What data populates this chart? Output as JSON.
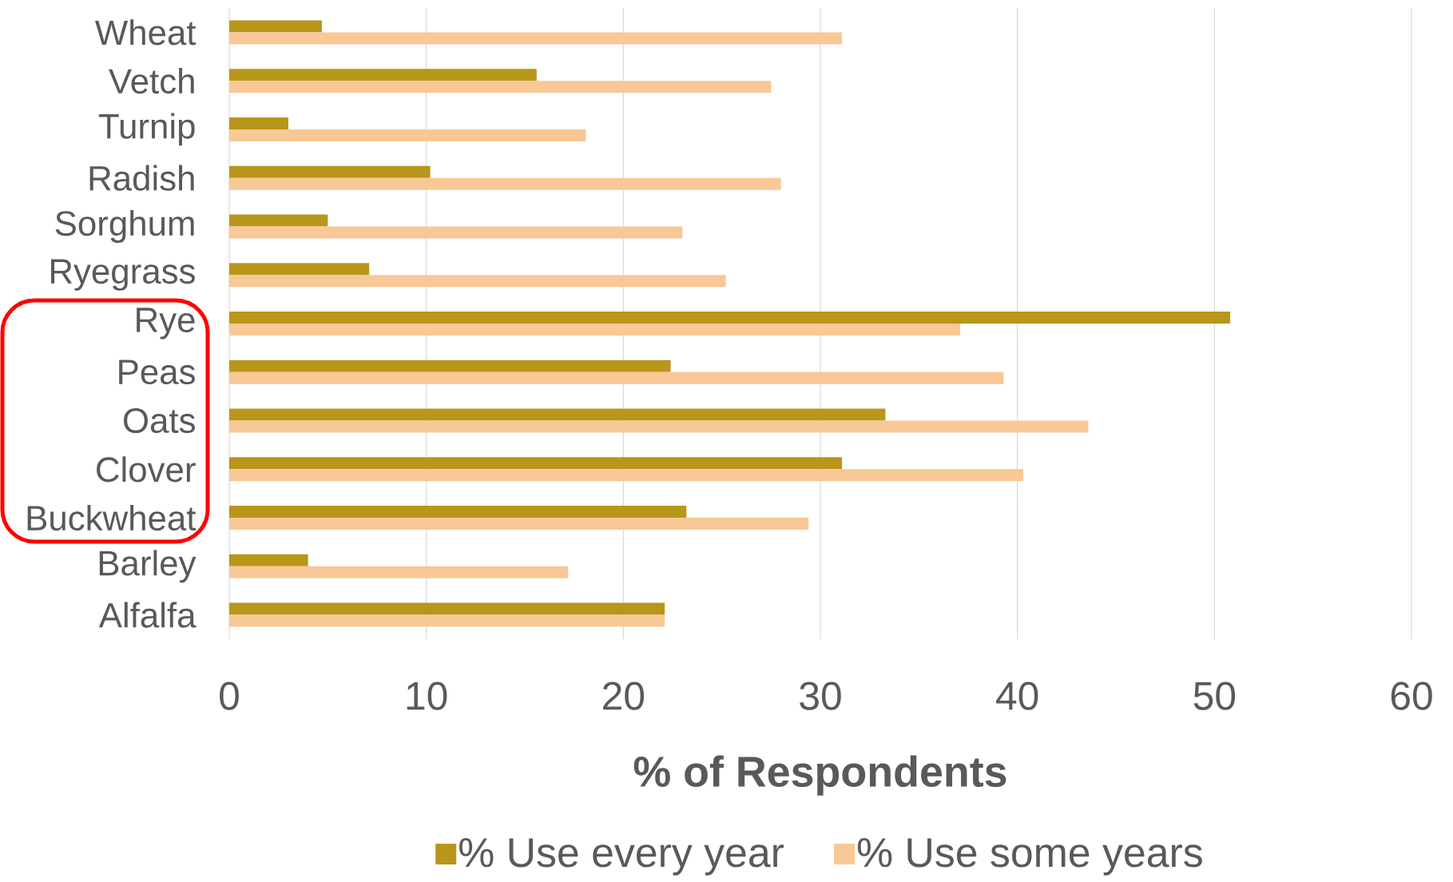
{
  "chart_data": {
    "type": "bar",
    "orientation": "horizontal",
    "xlabel": "% of Respondents",
    "categories": [
      "Wheat",
      "Vetch",
      "Turnip",
      "Radish",
      "Sorghum",
      "Ryegrass",
      "Rye",
      "Peas",
      "Oats",
      "Clover",
      "Buckwheat",
      "Barley",
      "Alfalfa"
    ],
    "series": [
      {
        "name": "% Use every year",
        "color": "#b8961a",
        "values": [
          4.7,
          15.6,
          3.0,
          10.2,
          5.0,
          7.1,
          50.8,
          22.4,
          33.3,
          31.1,
          23.2,
          4.0,
          22.1
        ]
      },
      {
        "name": "% Use some years",
        "color": "#f8c896",
        "values": [
          31.1,
          27.5,
          18.1,
          28.0,
          23.0,
          25.2,
          37.1,
          39.3,
          43.6,
          40.3,
          29.4,
          17.2,
          22.1
        ]
      }
    ],
    "xlim": [
      0,
      60
    ],
    "xticks": [
      0,
      10,
      20,
      30,
      40,
      50,
      60
    ],
    "grid": "x",
    "legend": "bottom"
  }
}
